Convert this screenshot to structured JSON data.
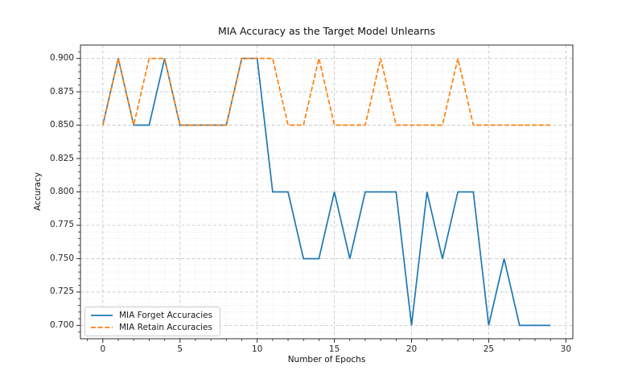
{
  "chart_data": {
    "type": "line",
    "title": "MIA Accuracy as the Target Model Unlearns",
    "xlabel": "Number of Epochs",
    "ylabel": "Accuracy",
    "x": [
      0,
      1,
      2,
      3,
      4,
      5,
      6,
      7,
      8,
      9,
      10,
      11,
      12,
      13,
      14,
      15,
      16,
      17,
      18,
      19,
      20,
      21,
      22,
      23,
      24,
      25,
      26,
      27,
      28,
      29
    ],
    "series": [
      {
        "name": "MIA Forget Accuracies",
        "color": "#1f77b4",
        "style": "solid",
        "values": [
          0.85,
          0.9,
          0.85,
          0.85,
          0.9,
          0.85,
          0.85,
          0.85,
          0.85,
          0.9,
          0.9,
          0.8,
          0.8,
          0.75,
          0.75,
          0.8,
          0.75,
          0.8,
          0.8,
          0.8,
          0.7,
          0.8,
          0.75,
          0.8,
          0.8,
          0.7,
          0.75,
          0.7,
          0.7,
          0.7
        ]
      },
      {
        "name": "MIA Retain Accuracies",
        "color": "#ff7f0e",
        "style": "dashed",
        "values": [
          0.85,
          0.9,
          0.85,
          0.9,
          0.9,
          0.85,
          0.85,
          0.85,
          0.85,
          0.9,
          0.9,
          0.9,
          0.85,
          0.85,
          0.9,
          0.85,
          0.85,
          0.85,
          0.9,
          0.85,
          0.85,
          0.85,
          0.85,
          0.9,
          0.85,
          0.85,
          0.85,
          0.85,
          0.85,
          0.85
        ]
      }
    ],
    "xlim": [
      -1.45,
      30.45
    ],
    "ylim": [
      0.69,
      0.91
    ],
    "xticks": [
      0,
      5,
      10,
      15,
      20,
      25,
      30
    ],
    "xtick_labels": [
      "0",
      "5",
      "10",
      "15",
      "20",
      "25",
      "30"
    ],
    "yticks": [
      0.7,
      0.725,
      0.75,
      0.775,
      0.8,
      0.825,
      0.85,
      0.875,
      0.9
    ],
    "ytick_labels": [
      "0.700",
      "0.725",
      "0.750",
      "0.775",
      "0.800",
      "0.825",
      "0.850",
      "0.875",
      "0.900"
    ],
    "grid": {
      "major": true,
      "minor": true,
      "x_minor_step": 1,
      "y_minor_step": 0.005
    },
    "legend": {
      "position": "lower-left"
    }
  },
  "colors": {
    "forget_line": "#1f77b4",
    "retain_line": "#ff7f0e",
    "grid_major": "#c3c3c3",
    "grid_minor": "#e4e4e4",
    "spine": "#2b2b2b"
  }
}
